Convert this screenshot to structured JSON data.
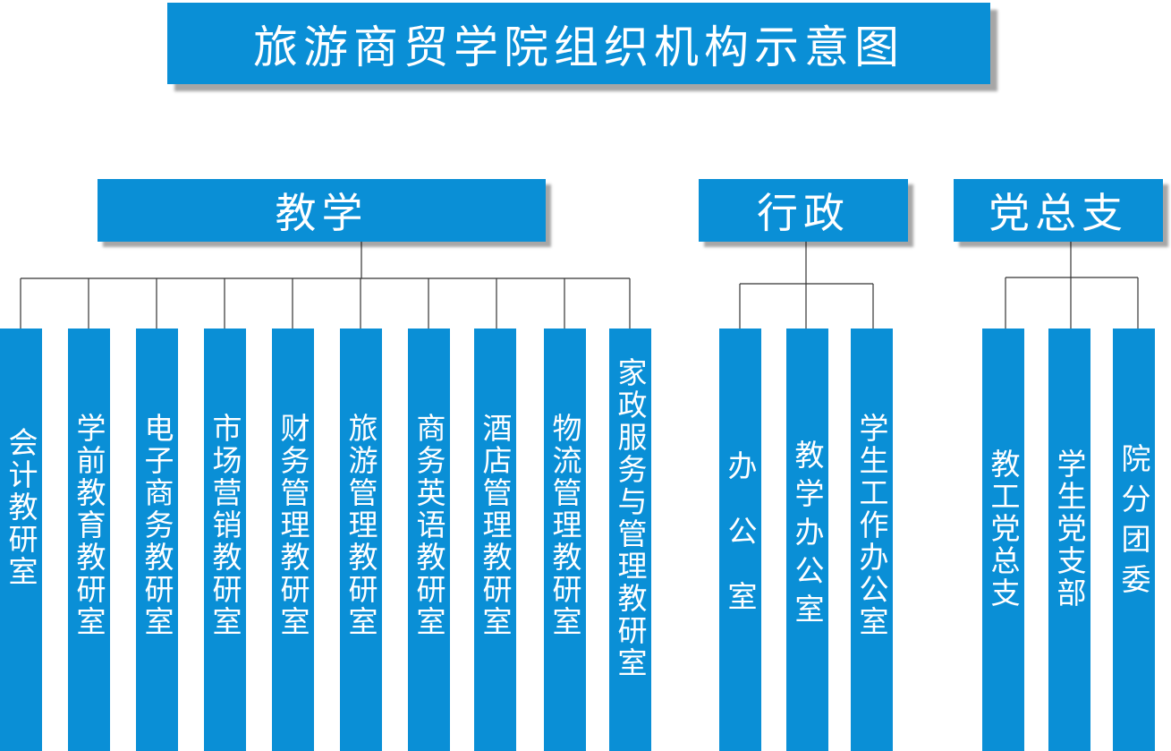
{
  "title": "旅游商贸学院组织机构示意图",
  "groups": {
    "teaching": {
      "label": "教学",
      "units": [
        "会计教研室",
        "学前教育教研室",
        "电子商务教研室",
        "市场营销教研室",
        "财务管理教研室",
        "旅游管理教研室",
        "商务英语教研室",
        "酒店管理教研室",
        "物流管理教研室",
        "家政服务与管理教研室"
      ]
    },
    "admin": {
      "label": "行政",
      "units": [
        "办公室",
        "教学办公室",
        "学生工作办公室"
      ]
    },
    "party": {
      "label": "党总支",
      "units": [
        "教工党总支",
        "学生党支部",
        "院分团委"
      ]
    }
  },
  "colors": {
    "box": "#0a8fd6",
    "text": "#ffffff",
    "line": "#333333"
  }
}
